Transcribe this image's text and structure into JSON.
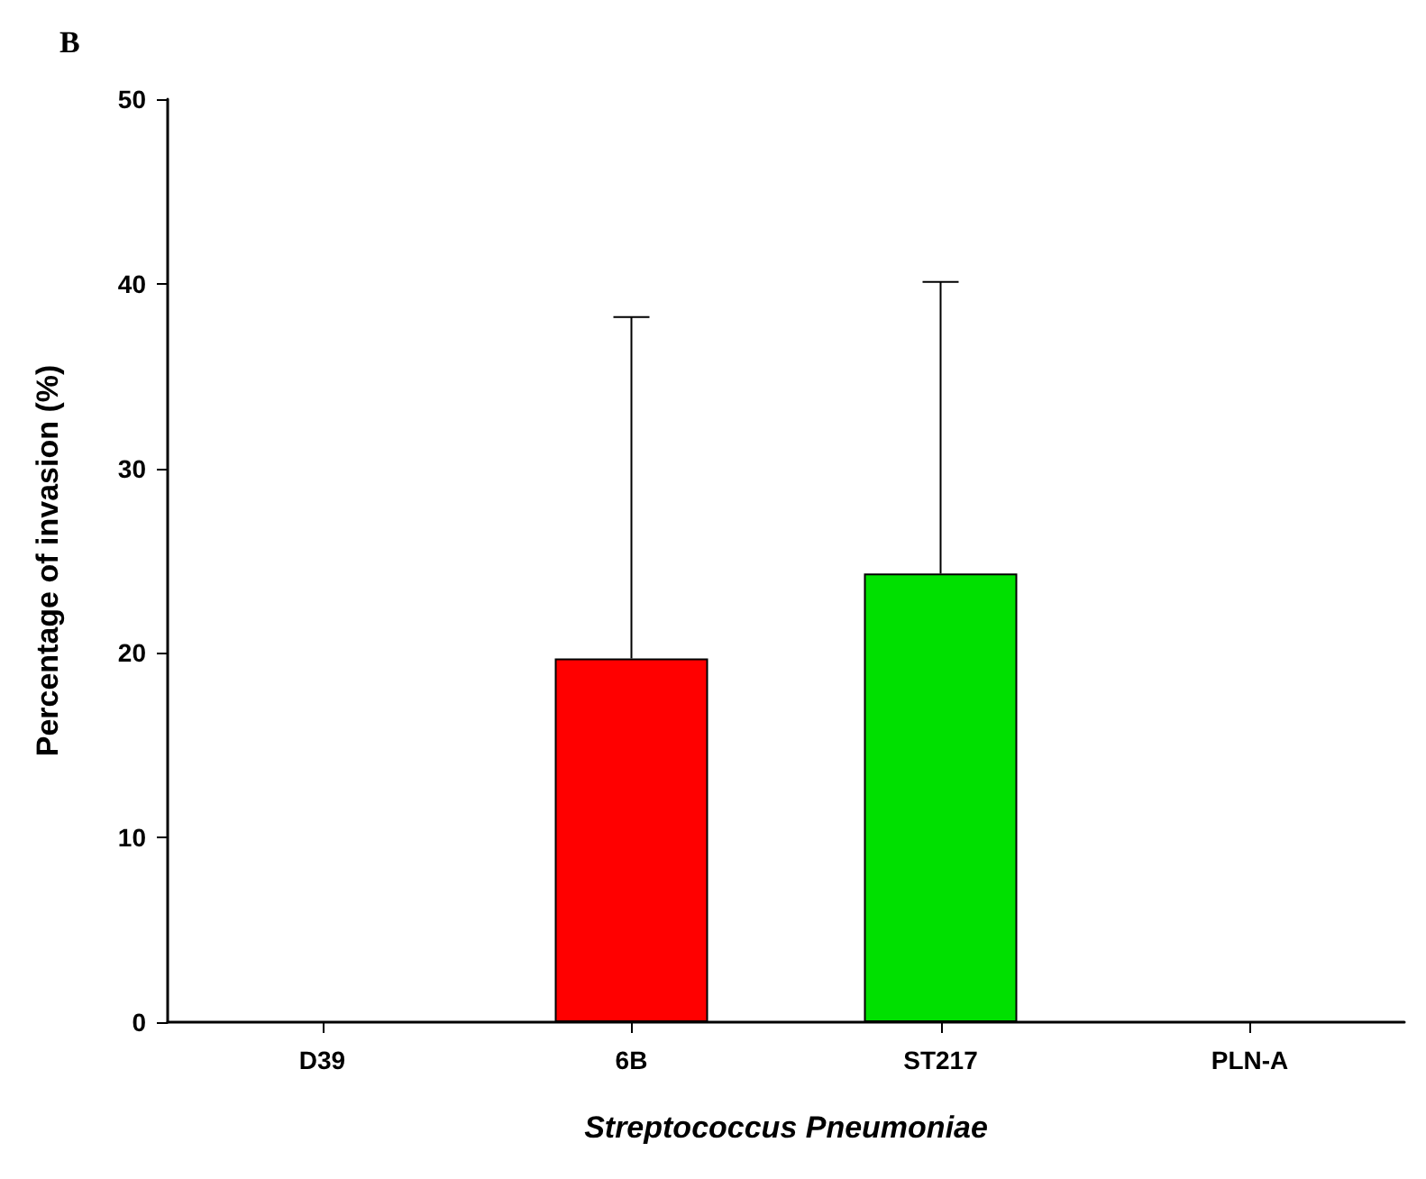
{
  "chart_data": {
    "type": "bar",
    "title": "B",
    "xlabel": "Streptococcus Pneumoniae",
    "ylabel": "Percentage of invasion (%)",
    "categories": [
      "D39",
      "6B",
      "ST217",
      "PLN-A"
    ],
    "values": [
      0,
      19.7,
      24.3,
      0
    ],
    "colors": [
      null,
      "#ff0000",
      "#00e000",
      null
    ],
    "errors": [
      null,
      [
        19.7,
        38.2
      ],
      [
        24.3,
        40.1
      ],
      null
    ],
    "ylim": [
      0,
      50
    ],
    "yticks": [
      0,
      10,
      20,
      30,
      40,
      50
    ],
    "grid": false
  }
}
